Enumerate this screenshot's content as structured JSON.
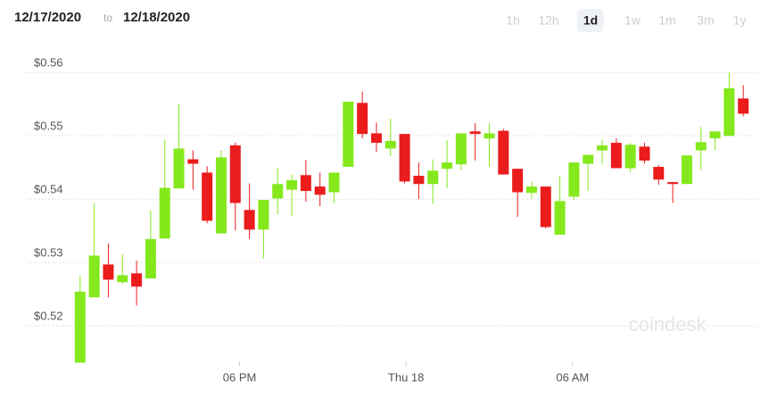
{
  "header": {
    "from": "12/17/2020",
    "to_word": "to",
    "to": "12/18/2020",
    "ranges": [
      "1h",
      "12h",
      "1d",
      "1w",
      "1m",
      "3m",
      "1y"
    ],
    "selected_range": "1d"
  },
  "watermark": "coindesk",
  "chart_data": {
    "type": "candlestick",
    "up_color": "#84e81c",
    "down_color": "#ea1c1c",
    "open": [
      0.5142,
      0.5245,
      0.5297,
      0.5269,
      0.5283,
      0.5275,
      0.5338,
      0.5417,
      0.5463,
      0.5442,
      0.5346,
      0.5485,
      0.5383,
      0.5352,
      0.5401,
      0.5415,
      0.5438,
      0.542,
      0.5411,
      0.5451,
      0.5552,
      0.5504,
      0.548,
      0.5503,
      0.5437,
      0.5424,
      0.5448,
      0.5455,
      0.5507,
      0.5496,
      0.5508,
      0.5448,
      0.541,
      0.542,
      0.5344,
      0.5404,
      0.5456,
      0.5477,
      0.5489,
      0.5449,
      0.5483,
      0.5451,
      0.5427,
      0.5424,
      0.5477,
      0.5496,
      0.55,
      0.5559
    ],
    "high": [
      0.528,
      0.5394,
      0.533,
      0.5313,
      0.5303,
      0.5382,
      0.5494,
      0.5551,
      0.5477,
      0.5452,
      0.5477,
      0.5489,
      0.5425,
      0.5399,
      0.5449,
      0.5439,
      0.5462,
      0.5442,
      0.5442,
      0.5554,
      0.557,
      0.5521,
      0.5527,
      0.5503,
      0.5458,
      0.5463,
      0.5493,
      0.5504,
      0.552,
      0.552,
      0.5511,
      0.5448,
      0.5428,
      0.542,
      0.5437,
      0.5458,
      0.547,
      0.5494,
      0.5496,
      0.5489,
      0.5489,
      0.5454,
      0.5427,
      0.5469,
      0.5514,
      0.5507,
      0.56,
      0.558
    ],
    "low": [
      0.5142,
      0.5245,
      0.5245,
      0.5266,
      0.5232,
      0.5275,
      0.5338,
      0.5417,
      0.5415,
      0.5362,
      0.5346,
      0.5351,
      0.5337,
      0.5306,
      0.5376,
      0.5373,
      0.5396,
      0.5389,
      0.5394,
      0.5451,
      0.5496,
      0.5475,
      0.5468,
      0.5425,
      0.54,
      0.5393,
      0.5417,
      0.5446,
      0.5461,
      0.5451,
      0.5439,
      0.5372,
      0.5401,
      0.5354,
      0.5344,
      0.5399,
      0.5413,
      0.5456,
      0.5449,
      0.5442,
      0.5456,
      0.5423,
      0.5394,
      0.5424,
      0.5446,
      0.5477,
      0.55,
      0.5531
    ],
    "close": [
      0.5254,
      0.5311,
      0.5273,
      0.528,
      0.5262,
      0.5337,
      0.5418,
      0.548,
      0.5456,
      0.5366,
      0.5466,
      0.5394,
      0.5352,
      0.5399,
      0.5424,
      0.543,
      0.5413,
      0.5407,
      0.5442,
      0.5554,
      0.5503,
      0.5489,
      0.5492,
      0.5428,
      0.5424,
      0.5445,
      0.5458,
      0.5504,
      0.5503,
      0.5504,
      0.5439,
      0.5411,
      0.542,
      0.5356,
      0.5397,
      0.5458,
      0.547,
      0.5485,
      0.5449,
      0.5486,
      0.5461,
      0.5431,
      0.5424,
      0.5469,
      0.549,
      0.5507,
      0.5575,
      0.5535
    ],
    "xlim": [
      -1,
      48
    ],
    "xticks": [
      {
        "value": 11.3,
        "label": "06 PM"
      },
      {
        "value": 23.1,
        "label": "Thu 18"
      },
      {
        "value": 34.9,
        "label": "06 AM"
      }
    ],
    "ylim": [
      0.513,
      0.5637
    ],
    "yticks": [
      {
        "value": 0.52,
        "label": "$0.52"
      },
      {
        "value": 0.53,
        "label": "$0.53"
      },
      {
        "value": 0.54,
        "label": "$0.54"
      },
      {
        "value": 0.55,
        "label": "$0.55"
      },
      {
        "value": 0.56,
        "label": "$0.56"
      }
    ],
    "grid": true
  }
}
